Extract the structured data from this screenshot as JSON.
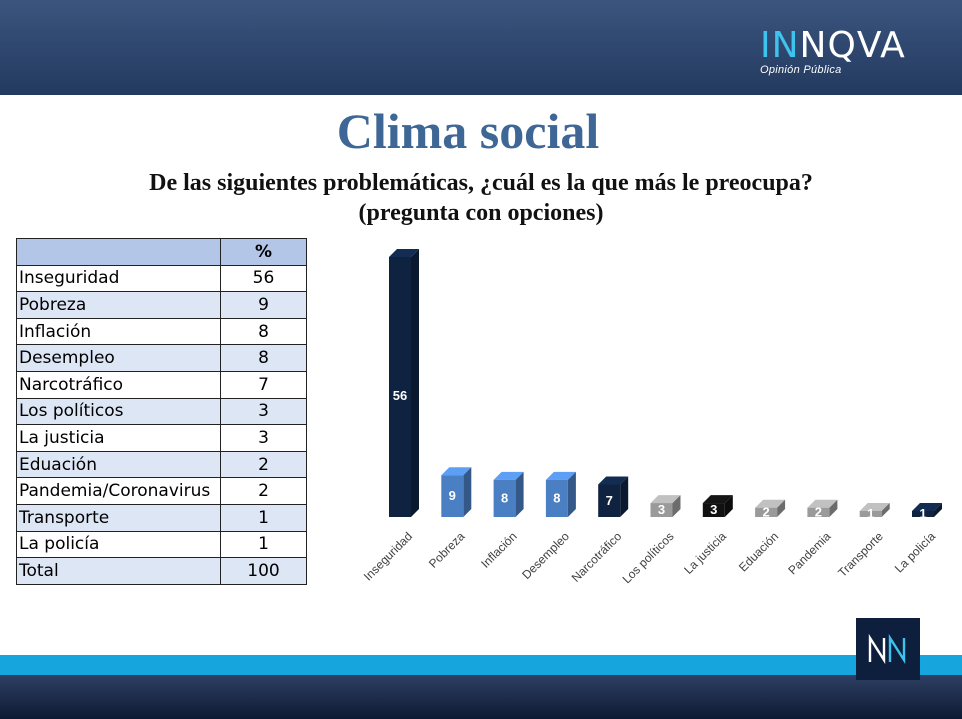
{
  "header": {
    "logo_main_a": "IN",
    "logo_main_b": "NQVA",
    "logo_sub": "Opinión Pública"
  },
  "title": "Clima social",
  "subtitle_line1": "De las siguientes problemáticas, ¿cuál es la que más le preocupa?",
  "subtitle_line2": "(pregunta con opciones)",
  "table": {
    "header_value": "%",
    "rows": [
      {
        "label": "Inseguridad",
        "value": "56"
      },
      {
        "label": "Pobreza",
        "value": "9"
      },
      {
        "label": "Inflación",
        "value": "8"
      },
      {
        "label": "Desempleo",
        "value": "8"
      },
      {
        "label": "Narcotráfico",
        "value": "7"
      },
      {
        "label": "Los políticos",
        "value": "3"
      },
      {
        "label": "La justicia",
        "value": "3"
      },
      {
        "label": "Eduación",
        "value": "2"
      },
      {
        "label": "Pandemia/Coronavirus",
        "value": "2"
      },
      {
        "label": "Transporte",
        "value": "1"
      },
      {
        "label": "La policía",
        "value": "1"
      },
      {
        "label": "Total",
        "value": "100"
      }
    ]
  },
  "chart_data": {
    "type": "bar",
    "categories": [
      "Inseguridad",
      "Pobreza",
      "Inflación",
      "Desempleo",
      "Narcotráfico",
      "Los políticos",
      "La justicia",
      "Eduación",
      "Pandemia",
      "Transporte",
      "La policía"
    ],
    "values": [
      56,
      9,
      8,
      8,
      7,
      3,
      3,
      2,
      2,
      1,
      1
    ],
    "colors": [
      "#0f2341",
      "#4a7fc4",
      "#4a7fc4",
      "#4a7fc4",
      "#0f2341",
      "#9a9a9a",
      "#111111",
      "#9a9a9a",
      "#9a9a9a",
      "#9a9a9a",
      "#0f2341"
    ],
    "ylim": [
      0,
      56
    ],
    "grid": false,
    "legend": "none"
  },
  "corner_logo": "NN"
}
